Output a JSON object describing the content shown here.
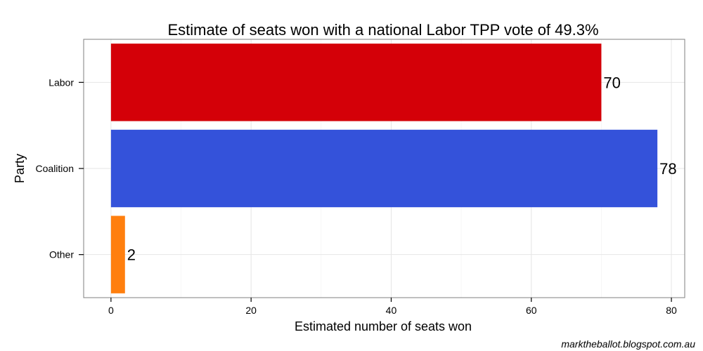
{
  "chart_data": {
    "type": "bar",
    "orientation": "horizontal",
    "title": "Estimate of seats won with a national Labor TPP vote of 49.3%",
    "xlabel": "Estimated number of seats won",
    "ylabel": "Party",
    "categories": [
      "Labor",
      "Coalition",
      "Other"
    ],
    "values": [
      70,
      78,
      2
    ],
    "data_labels": [
      "70",
      "78",
      "2"
    ],
    "colors": [
      "#d40008",
      "#3452da",
      "#ff7f0e"
    ],
    "xlim": [
      -3.9,
      81.9
    ],
    "x_ticks": [
      0,
      20,
      40,
      60,
      80
    ],
    "x_tick_labels": [
      "0",
      "20",
      "40",
      "60",
      "80"
    ],
    "grid": true,
    "legend": "none"
  },
  "footer": {
    "source": "marktheballot.blogspot.com.au"
  }
}
